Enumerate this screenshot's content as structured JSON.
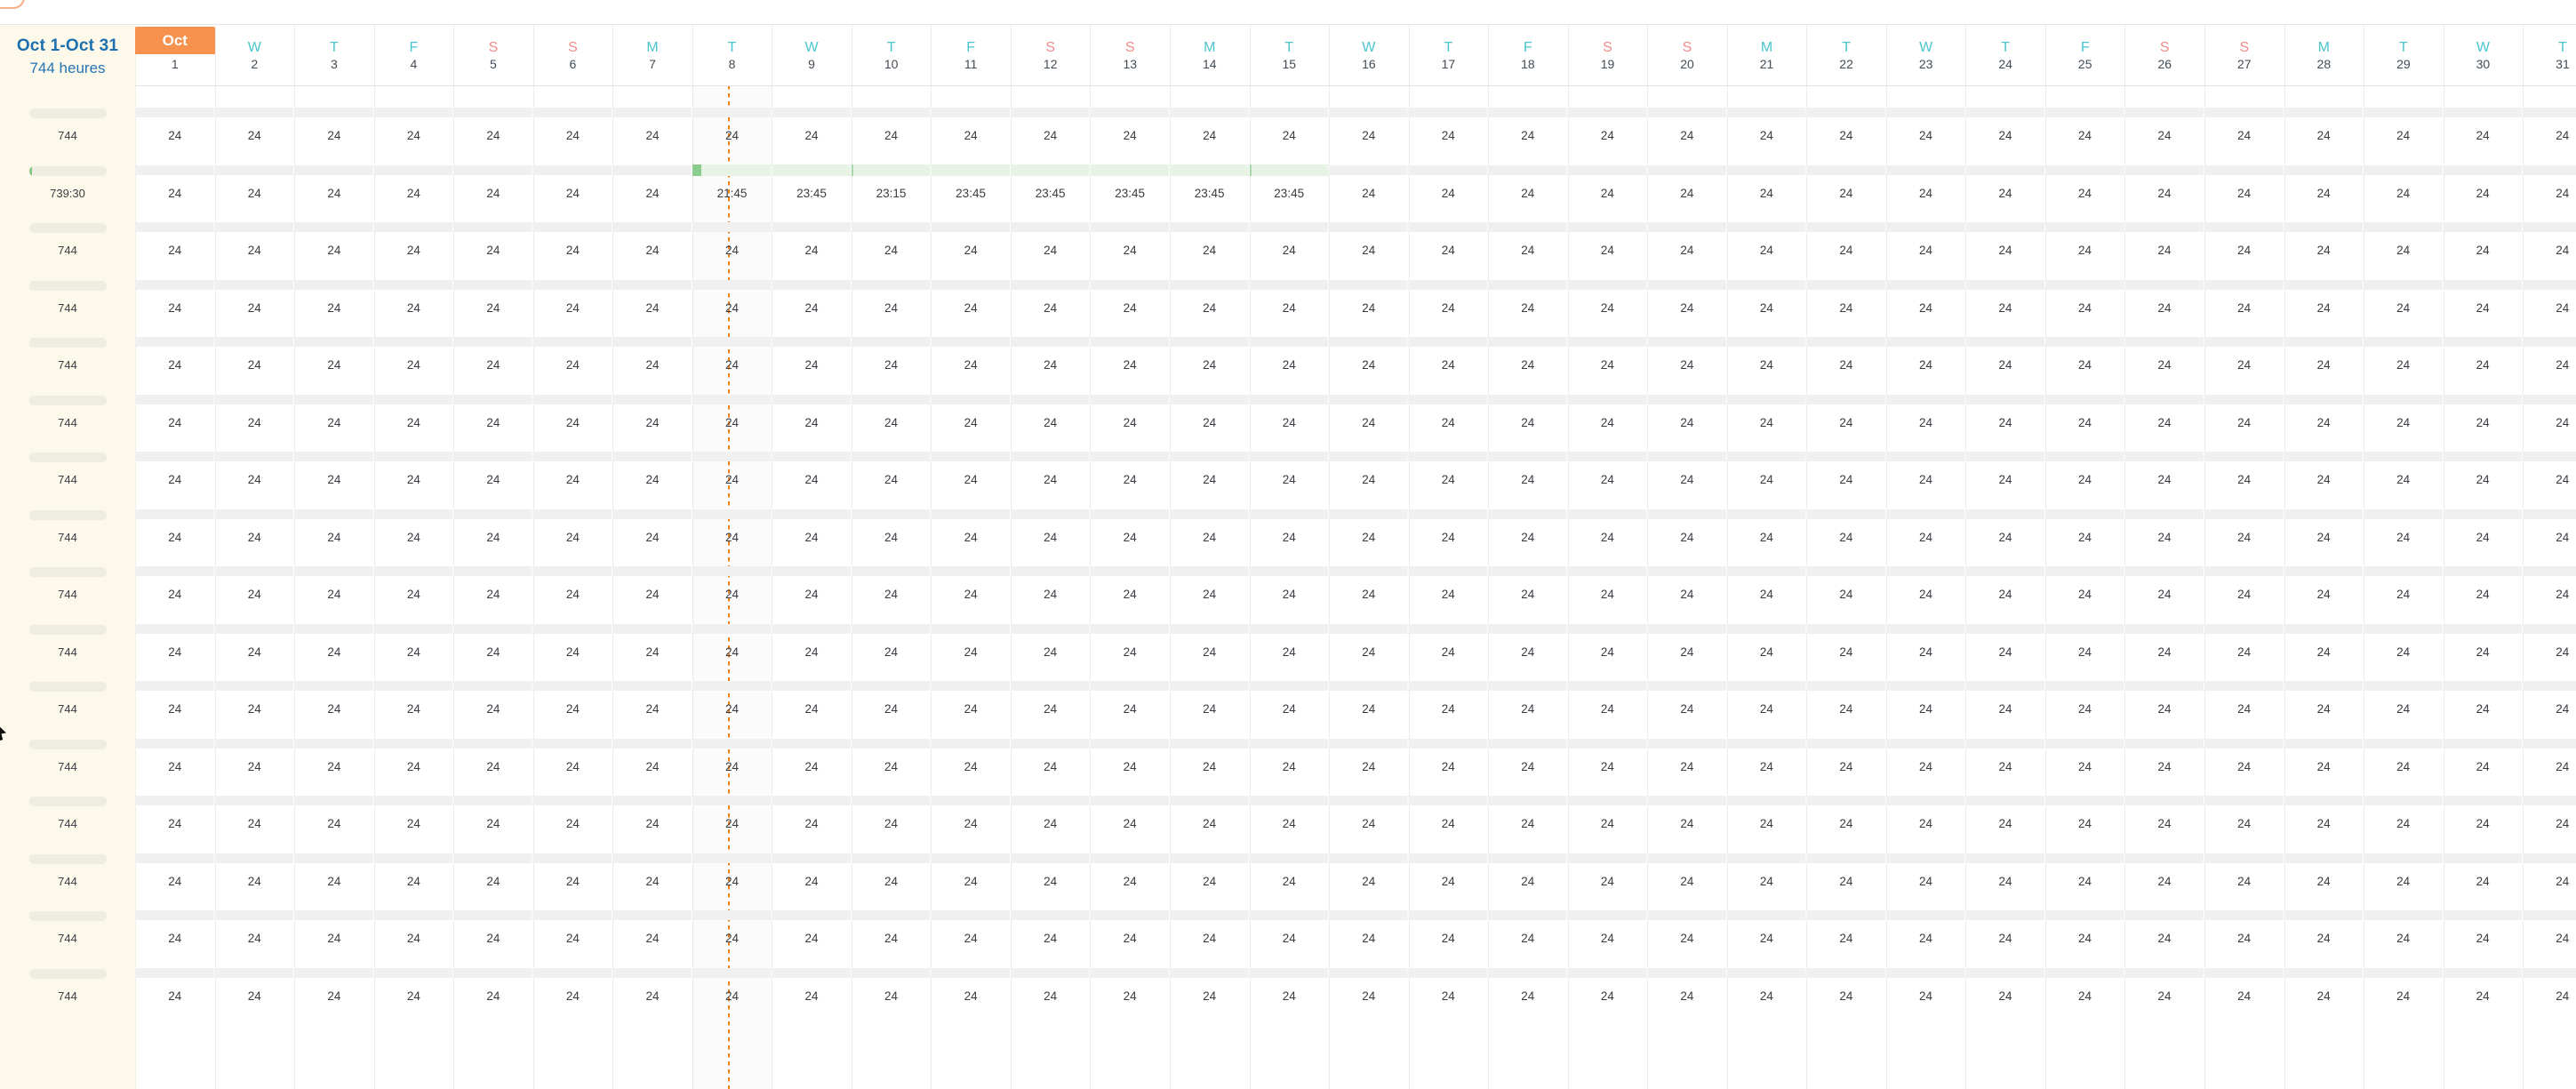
{
  "summary": {
    "range": "Oct 1-Oct 31",
    "total_hours": "744 heures"
  },
  "month_badge": "Oct",
  "day_headers": [
    {
      "day": "1",
      "letter": "",
      "weekend": false,
      "month_start": true
    },
    {
      "day": "2",
      "letter": "W",
      "weekend": false
    },
    {
      "day": "3",
      "letter": "T",
      "weekend": false
    },
    {
      "day": "4",
      "letter": "F",
      "weekend": false
    },
    {
      "day": "5",
      "letter": "S",
      "weekend": true
    },
    {
      "day": "6",
      "letter": "S",
      "weekend": true
    },
    {
      "day": "7",
      "letter": "M",
      "weekend": false
    },
    {
      "day": "8",
      "letter": "T",
      "weekend": false
    },
    {
      "day": "9",
      "letter": "W",
      "weekend": false
    },
    {
      "day": "10",
      "letter": "T",
      "weekend": false
    },
    {
      "day": "11",
      "letter": "F",
      "weekend": false
    },
    {
      "day": "12",
      "letter": "S",
      "weekend": true
    },
    {
      "day": "13",
      "letter": "S",
      "weekend": true
    },
    {
      "day": "14",
      "letter": "M",
      "weekend": false
    },
    {
      "day": "15",
      "letter": "T",
      "weekend": false
    },
    {
      "day": "16",
      "letter": "W",
      "weekend": false
    },
    {
      "day": "17",
      "letter": "T",
      "weekend": false
    },
    {
      "day": "18",
      "letter": "F",
      "weekend": false
    },
    {
      "day": "19",
      "letter": "S",
      "weekend": true
    },
    {
      "day": "20",
      "letter": "S",
      "weekend": true
    },
    {
      "day": "21",
      "letter": "M",
      "weekend": false
    },
    {
      "day": "22",
      "letter": "T",
      "weekend": false
    },
    {
      "day": "23",
      "letter": "W",
      "weekend": false
    },
    {
      "day": "24",
      "letter": "T",
      "weekend": false
    },
    {
      "day": "25",
      "letter": "F",
      "weekend": false
    },
    {
      "day": "26",
      "letter": "S",
      "weekend": true
    },
    {
      "day": "27",
      "letter": "S",
      "weekend": true
    },
    {
      "day": "28",
      "letter": "M",
      "weekend": false
    },
    {
      "day": "29",
      "letter": "T",
      "weekend": false
    },
    {
      "day": "30",
      "letter": "W",
      "weekend": false
    },
    {
      "day": "31",
      "letter": "T",
      "weekend": false
    }
  ],
  "timeline": {
    "current_marker_day": 8,
    "marker_day_fraction": 0.45
  },
  "rows": [
    {
      "total": "744",
      "progress_sliver": false,
      "highlight": null,
      "values": [
        "24",
        "24",
        "24",
        "24",
        "24",
        "24",
        "24",
        "24",
        "24",
        "24",
        "24",
        "24",
        "24",
        "24",
        "24",
        "24",
        "24",
        "24",
        "24",
        "24",
        "24",
        "24",
        "24",
        "24",
        "24",
        "24",
        "24",
        "24",
        "24",
        "24",
        "24"
      ]
    },
    {
      "total": "739:30",
      "progress_sliver": true,
      "highlight": {
        "from_day": 8,
        "to_day": 15,
        "tick_days": [
          10,
          15
        ]
      },
      "values": [
        "24",
        "24",
        "24",
        "24",
        "24",
        "24",
        "24",
        "21:45",
        "23:45",
        "23:15",
        "23:45",
        "23:45",
        "23:45",
        "23:45",
        "23:45",
        "24",
        "24",
        "24",
        "24",
        "24",
        "24",
        "24",
        "24",
        "24",
        "24",
        "24",
        "24",
        "24",
        "24",
        "24",
        "24"
      ]
    },
    {
      "total": "744",
      "progress_sliver": false,
      "highlight": null,
      "values": [
        "24",
        "24",
        "24",
        "24",
        "24",
        "24",
        "24",
        "24",
        "24",
        "24",
        "24",
        "24",
        "24",
        "24",
        "24",
        "24",
        "24",
        "24",
        "24",
        "24",
        "24",
        "24",
        "24",
        "24",
        "24",
        "24",
        "24",
        "24",
        "24",
        "24",
        "24"
      ]
    },
    {
      "total": "744",
      "progress_sliver": false,
      "highlight": null,
      "values": [
        "24",
        "24",
        "24",
        "24",
        "24",
        "24",
        "24",
        "24",
        "24",
        "24",
        "24",
        "24",
        "24",
        "24",
        "24",
        "24",
        "24",
        "24",
        "24",
        "24",
        "24",
        "24",
        "24",
        "24",
        "24",
        "24",
        "24",
        "24",
        "24",
        "24",
        "24"
      ]
    },
    {
      "total": "744",
      "progress_sliver": false,
      "highlight": null,
      "values": [
        "24",
        "24",
        "24",
        "24",
        "24",
        "24",
        "24",
        "24",
        "24",
        "24",
        "24",
        "24",
        "24",
        "24",
        "24",
        "24",
        "24",
        "24",
        "24",
        "24",
        "24",
        "24",
        "24",
        "24",
        "24",
        "24",
        "24",
        "24",
        "24",
        "24",
        "24"
      ]
    },
    {
      "total": "744",
      "progress_sliver": false,
      "highlight": null,
      "values": [
        "24",
        "24",
        "24",
        "24",
        "24",
        "24",
        "24",
        "24",
        "24",
        "24",
        "24",
        "24",
        "24",
        "24",
        "24",
        "24",
        "24",
        "24",
        "24",
        "24",
        "24",
        "24",
        "24",
        "24",
        "24",
        "24",
        "24",
        "24",
        "24",
        "24",
        "24"
      ]
    },
    {
      "total": "744",
      "progress_sliver": false,
      "highlight": null,
      "values": [
        "24",
        "24",
        "24",
        "24",
        "24",
        "24",
        "24",
        "24",
        "24",
        "24",
        "24",
        "24",
        "24",
        "24",
        "24",
        "24",
        "24",
        "24",
        "24",
        "24",
        "24",
        "24",
        "24",
        "24",
        "24",
        "24",
        "24",
        "24",
        "24",
        "24",
        "24"
      ]
    },
    {
      "total": "744",
      "progress_sliver": false,
      "highlight": null,
      "values": [
        "24",
        "24",
        "24",
        "24",
        "24",
        "24",
        "24",
        "24",
        "24",
        "24",
        "24",
        "24",
        "24",
        "24",
        "24",
        "24",
        "24",
        "24",
        "24",
        "24",
        "24",
        "24",
        "24",
        "24",
        "24",
        "24",
        "24",
        "24",
        "24",
        "24",
        "24"
      ]
    },
    {
      "total": "744",
      "progress_sliver": false,
      "highlight": null,
      "values": [
        "24",
        "24",
        "24",
        "24",
        "24",
        "24",
        "24",
        "24",
        "24",
        "24",
        "24",
        "24",
        "24",
        "24",
        "24",
        "24",
        "24",
        "24",
        "24",
        "24",
        "24",
        "24",
        "24",
        "24",
        "24",
        "24",
        "24",
        "24",
        "24",
        "24",
        "24"
      ]
    },
    {
      "total": "744",
      "progress_sliver": false,
      "highlight": null,
      "values": [
        "24",
        "24",
        "24",
        "24",
        "24",
        "24",
        "24",
        "24",
        "24",
        "24",
        "24",
        "24",
        "24",
        "24",
        "24",
        "24",
        "24",
        "24",
        "24",
        "24",
        "24",
        "24",
        "24",
        "24",
        "24",
        "24",
        "24",
        "24",
        "24",
        "24",
        "24"
      ]
    },
    {
      "total": "744",
      "progress_sliver": false,
      "highlight": null,
      "values": [
        "24",
        "24",
        "24",
        "24",
        "24",
        "24",
        "24",
        "24",
        "24",
        "24",
        "24",
        "24",
        "24",
        "24",
        "24",
        "24",
        "24",
        "24",
        "24",
        "24",
        "24",
        "24",
        "24",
        "24",
        "24",
        "24",
        "24",
        "24",
        "24",
        "24",
        "24"
      ]
    },
    {
      "total": "744",
      "progress_sliver": false,
      "highlight": null,
      "values": [
        "24",
        "24",
        "24",
        "24",
        "24",
        "24",
        "24",
        "24",
        "24",
        "24",
        "24",
        "24",
        "24",
        "24",
        "24",
        "24",
        "24",
        "24",
        "24",
        "24",
        "24",
        "24",
        "24",
        "24",
        "24",
        "24",
        "24",
        "24",
        "24",
        "24",
        "24"
      ]
    },
    {
      "total": "744",
      "progress_sliver": false,
      "highlight": null,
      "values": [
        "24",
        "24",
        "24",
        "24",
        "24",
        "24",
        "24",
        "24",
        "24",
        "24",
        "24",
        "24",
        "24",
        "24",
        "24",
        "24",
        "24",
        "24",
        "24",
        "24",
        "24",
        "24",
        "24",
        "24",
        "24",
        "24",
        "24",
        "24",
        "24",
        "24",
        "24"
      ]
    },
    {
      "total": "744",
      "progress_sliver": false,
      "highlight": null,
      "values": [
        "24",
        "24",
        "24",
        "24",
        "24",
        "24",
        "24",
        "24",
        "24",
        "24",
        "24",
        "24",
        "24",
        "24",
        "24",
        "24",
        "24",
        "24",
        "24",
        "24",
        "24",
        "24",
        "24",
        "24",
        "24",
        "24",
        "24",
        "24",
        "24",
        "24",
        "24"
      ]
    },
    {
      "total": "744",
      "progress_sliver": false,
      "highlight": null,
      "values": [
        "24",
        "24",
        "24",
        "24",
        "24",
        "24",
        "24",
        "24",
        "24",
        "24",
        "24",
        "24",
        "24",
        "24",
        "24",
        "24",
        "24",
        "24",
        "24",
        "24",
        "24",
        "24",
        "24",
        "24",
        "24",
        "24",
        "24",
        "24",
        "24",
        "24",
        "24"
      ]
    },
    {
      "total": "744",
      "progress_sliver": false,
      "highlight": null,
      "values": [
        "24",
        "24",
        "24",
        "24",
        "24",
        "24",
        "24",
        "24",
        "24",
        "24",
        "24",
        "24",
        "24",
        "24",
        "24",
        "24",
        "24",
        "24",
        "24",
        "24",
        "24",
        "24",
        "24",
        "24",
        "24",
        "24",
        "24",
        "24",
        "24",
        "24",
        "24"
      ]
    }
  ],
  "colors": {
    "accent_orange": "#F6914E",
    "marker_orange": "#EF7F1C",
    "title_blue": "#1E6FAE",
    "weekday_teal": "#4BC4CE",
    "weekend_salmon": "#F28B8B",
    "highlight_green_light": "#E7F3E4",
    "highlight_green_cap": "#8BCD8E",
    "left_panel_cream": "#FCF9EB",
    "track_gray": "#F0F0F0"
  }
}
